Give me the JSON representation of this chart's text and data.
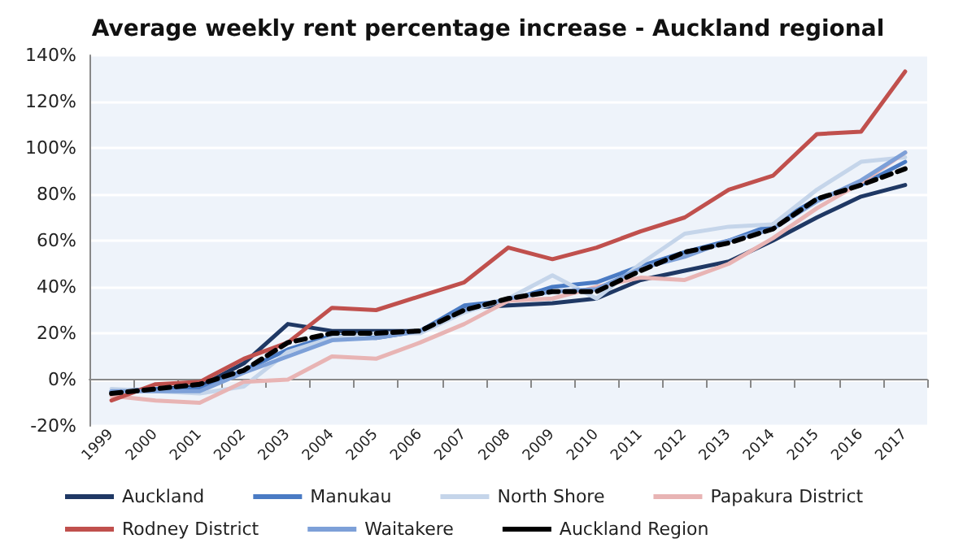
{
  "chart_data": {
    "type": "line",
    "title": "Average weekly rent percentage increase - Auckland regional",
    "categories": [
      "1999",
      "2000",
      "2001",
      "2002",
      "2003",
      "2004",
      "2005",
      "2006",
      "2007",
      "2008",
      "2009",
      "2010",
      "2011",
      "2012",
      "2013",
      "2014",
      "2015",
      "2016",
      "2017"
    ],
    "series": [
      {
        "name": "Auckland",
        "color": "#1f3864",
        "values": [
          -5,
          -4,
          -3,
          7,
          24,
          21,
          21,
          21,
          31,
          32,
          33,
          35,
          43,
          47,
          51,
          60,
          70,
          79,
          84
        ]
      },
      {
        "name": "Manukau",
        "color": "#4a7bc4",
        "values": [
          -5,
          -4,
          -4,
          4,
          13,
          19,
          18,
          21,
          32,
          34,
          40,
          42,
          49,
          55,
          60,
          67,
          78,
          84,
          94
        ]
      },
      {
        "name": "North Shore",
        "color": "#c5d5ea",
        "values": [
          -4,
          -5,
          -6,
          -3,
          12,
          18,
          20,
          20,
          29,
          35,
          45,
          35,
          50,
          63,
          66,
          67,
          82,
          94,
          96
        ]
      },
      {
        "name": "Papakura District",
        "color": "#e8b4b4",
        "values": [
          -7,
          -9,
          -10,
          -1,
          0,
          10,
          9,
          16,
          24,
          34,
          35,
          40,
          44,
          43,
          50,
          61,
          74,
          85,
          98
        ]
      },
      {
        "name": "Rodney District",
        "color": "#c0504d",
        "values": [
          -9,
          -2,
          -1,
          9,
          16,
          31,
          30,
          36,
          42,
          57,
          52,
          57,
          64,
          70,
          82,
          88,
          106,
          107,
          133
        ]
      },
      {
        "name": "Waitakere",
        "color": "#7da0d8",
        "values": [
          -5,
          -5,
          -5,
          3,
          10,
          17,
          18,
          21,
          30,
          35,
          38,
          39,
          48,
          53,
          60,
          65,
          77,
          86,
          98
        ]
      },
      {
        "name": "Auckland Region",
        "color": "#000000",
        "line_style": "dashed",
        "values": [
          -6,
          -4,
          -2,
          4,
          16,
          20,
          20,
          21,
          30,
          35,
          38,
          38,
          47,
          55,
          59,
          65,
          78,
          84,
          91
        ]
      }
    ],
    "ylim": [
      -20,
      140
    ],
    "yticks": [
      {
        "value": -20,
        "label": "-20%"
      },
      {
        "value": 0,
        "label": "0%"
      },
      {
        "value": 20,
        "label": "20%"
      },
      {
        "value": 40,
        "label": "40%"
      },
      {
        "value": 60,
        "label": "60%"
      },
      {
        "value": 80,
        "label": "80%"
      },
      {
        "value": 100,
        "label": "100%"
      },
      {
        "value": 120,
        "label": "120%"
      },
      {
        "value": 140,
        "label": "140%"
      }
    ],
    "grid": "y",
    "legend": "bottom",
    "marker": "none",
    "line_style": "solid"
  }
}
